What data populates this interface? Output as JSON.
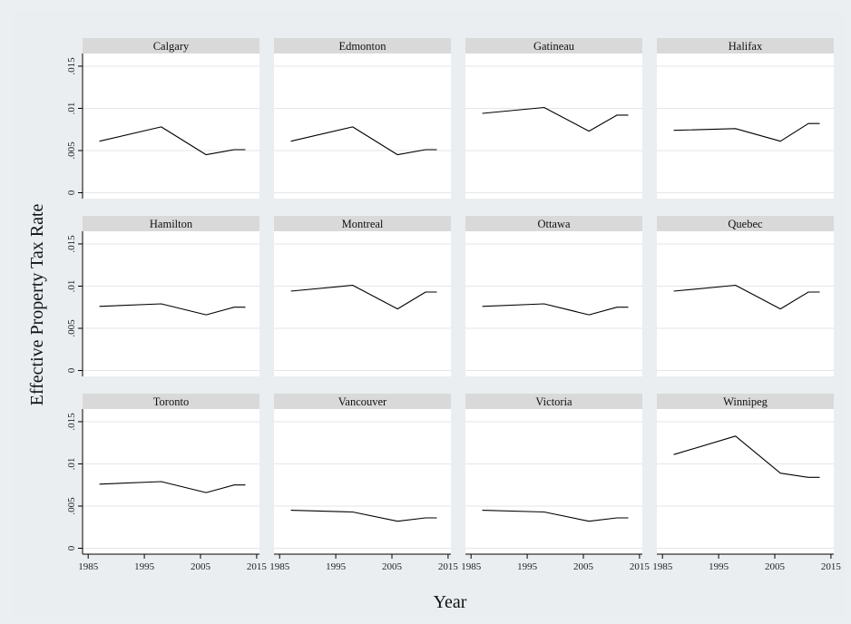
{
  "chart_data": {
    "type": "line",
    "ylabel": "Effective Property Tax Rate",
    "xlabel": "Year",
    "xlim": [
      1984,
      2015.5
    ],
    "ylim": [
      -0.0007,
      0.0165
    ],
    "xticks": [
      1985,
      1995,
      2005,
      2015
    ],
    "xtick_labels": [
      "1985",
      "1995",
      "2005",
      "2015"
    ],
    "yticks": [
      0,
      0.005,
      0.01,
      0.015
    ],
    "ytick_labels": [
      "0",
      ".005",
      ".01",
      ".015"
    ],
    "grid": true,
    "panels": [
      {
        "name": "Calgary",
        "x": [
          1987,
          1998,
          2006,
          2011,
          2013
        ],
        "y": [
          0.0061,
          0.0078,
          0.0045,
          0.0051,
          0.0051
        ]
      },
      {
        "name": "Edmonton",
        "x": [
          1987,
          1998,
          2006,
          2011,
          2013
        ],
        "y": [
          0.0061,
          0.0078,
          0.0045,
          0.0051,
          0.0051
        ]
      },
      {
        "name": "Gatineau",
        "x": [
          1987,
          1998,
          2006,
          2011,
          2013
        ],
        "y": [
          0.0094,
          0.0101,
          0.0073,
          0.0092,
          0.0092
        ]
      },
      {
        "name": "Halifax",
        "x": [
          1987,
          1998,
          2006,
          2011,
          2013
        ],
        "y": [
          0.0074,
          0.0076,
          0.0061,
          0.0082,
          0.0082
        ]
      },
      {
        "name": "Hamilton",
        "x": [
          1987,
          1998,
          2006,
          2011,
          2013
        ],
        "y": [
          0.0076,
          0.0079,
          0.0066,
          0.0075,
          0.0075
        ]
      },
      {
        "name": "Montreal",
        "x": [
          1987,
          1998,
          2006,
          2011,
          2013
        ],
        "y": [
          0.0094,
          0.0101,
          0.0073,
          0.0093,
          0.0093
        ]
      },
      {
        "name": "Ottawa",
        "x": [
          1987,
          1998,
          2006,
          2011,
          2013
        ],
        "y": [
          0.0076,
          0.0079,
          0.0066,
          0.0075,
          0.0075
        ]
      },
      {
        "name": "Quebec",
        "x": [
          1987,
          1998,
          2006,
          2011,
          2013
        ],
        "y": [
          0.0094,
          0.0101,
          0.0073,
          0.0093,
          0.0093
        ]
      },
      {
        "name": "Toronto",
        "x": [
          1987,
          1998,
          2006,
          2011,
          2013
        ],
        "y": [
          0.0076,
          0.0079,
          0.0066,
          0.0075,
          0.0075
        ]
      },
      {
        "name": "Vancouver",
        "x": [
          1987,
          1998,
          2006,
          2011,
          2013
        ],
        "y": [
          0.0045,
          0.0043,
          0.0032,
          0.0036,
          0.0036
        ]
      },
      {
        "name": "Victoria",
        "x": [
          1987,
          1998,
          2006,
          2011,
          2013
        ],
        "y": [
          0.0045,
          0.0043,
          0.0032,
          0.0036,
          0.0036
        ]
      },
      {
        "name": "Winnipeg",
        "x": [
          1987,
          1998,
          2006,
          2011,
          2013
        ],
        "y": [
          0.0111,
          0.0133,
          0.0089,
          0.0084,
          0.0084
        ]
      }
    ]
  }
}
